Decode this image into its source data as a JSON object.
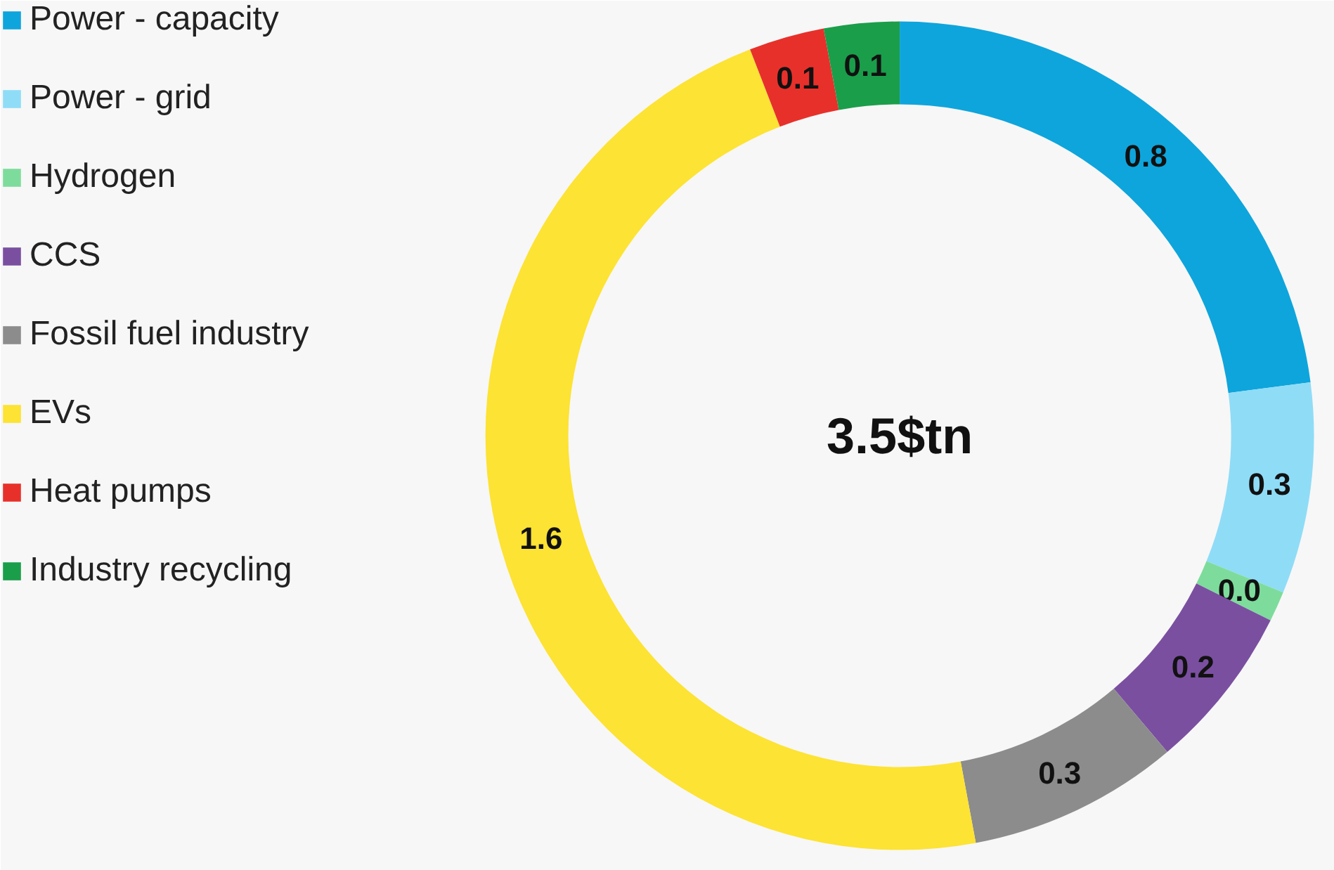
{
  "chart_data": {
    "type": "donut",
    "categories": [
      "Power - capacity",
      "Power - grid",
      "Hydrogen",
      "CCS",
      "Fossil fuel industry",
      "EVs",
      "Heat pumps",
      "Industry recycling"
    ],
    "values": [
      0.78,
      0.28,
      0.04,
      0.22,
      0.28,
      1.6,
      0.1,
      0.1
    ],
    "value_labels": [
      "0.8",
      "0.3",
      "0.0",
      "0.2",
      "0.3",
      "1.6",
      "0.1",
      "0.1"
    ],
    "colors": [
      "#0ea5dc",
      "#8fdcf7",
      "#7ddc9c",
      "#7a4fa0",
      "#8c8c8c",
      "#fde333",
      "#e8302a",
      "#1a9e4a"
    ],
    "annotations": [
      "3.5$tn"
    ],
    "legend": "left"
  }
}
